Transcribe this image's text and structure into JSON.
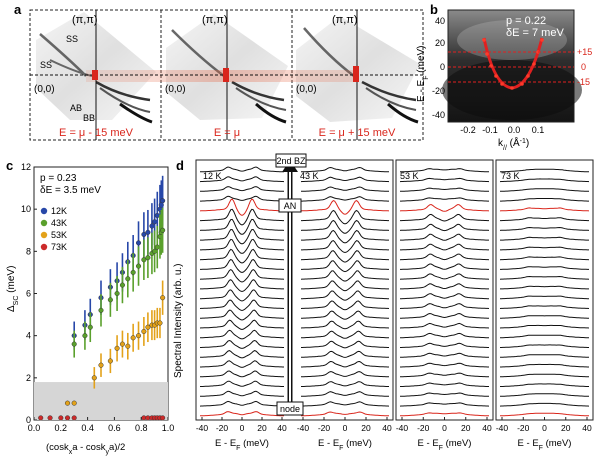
{
  "panel_a": {
    "letter": "a",
    "corner_label": "(π,π)",
    "origin_label": "(0,0)",
    "ss_label": "SS",
    "ab_label": "AB",
    "bb_label": "BB",
    "energy_labels": [
      "E = μ - 15 meV",
      "E = μ",
      "E = μ + 15 meV"
    ]
  },
  "panel_b": {
    "letter": "b",
    "doping": "p = 0.22",
    "delta_e": "δE = 7 meV",
    "ylabel": "E - E",
    "ylabel_sub": "F",
    "ylabel_unit": " (meV)",
    "xlabel": "k",
    "xlabel_sub": "//",
    "xlabel_unit": " (Å",
    "xlabel_sup": "-1",
    "xlabel_end": ")",
    "yticks": [
      "40",
      "20",
      "0",
      "-20",
      "-40"
    ],
    "xticks": [
      "-0.2",
      "-0.1",
      "0.0",
      "0.1"
    ],
    "marker_labels": [
      "+15",
      "0",
      "-15"
    ]
  },
  "panel_c": {
    "letter": "c",
    "doping": "p = 0.23",
    "delta_e": "δE = 3.5 meV",
    "ylabel": "Δ",
    "ylabel_sub": "SC",
    "ylabel_unit": " (meV)",
    "xlabel": "(cosk",
    "xlabel_sub1": "x",
    "xlabel_mid": "a - cosk",
    "xlabel_sub2": "y",
    "xlabel_end": "a)/2",
    "yticks": [
      "0",
      "2",
      "4",
      "6",
      "8",
      "10",
      "12"
    ],
    "xticks": [
      "0.0",
      "0.2",
      "0.4",
      "0.6",
      "0.8",
      "1.0"
    ],
    "legend": [
      {
        "label": "12K",
        "color": "#2747a8"
      },
      {
        "label": "43K",
        "color": "#5aa02c"
      },
      {
        "label": "53K",
        "color": "#e3a21a"
      },
      {
        "label": "73K",
        "color": "#cc2a2a"
      }
    ]
  },
  "chart_data": {
    "type": "scatter",
    "xlim": [
      0.0,
      1.0
    ],
    "ylim": [
      0,
      12
    ],
    "shaded_band_max": 1.8,
    "series": [
      {
        "name": "12K",
        "color": "#2747a8",
        "x": [
          0.3,
          0.38,
          0.42,
          0.5,
          0.57,
          0.62,
          0.66,
          0.7,
          0.74,
          0.78,
          0.82,
          0.85,
          0.88,
          0.9,
          0.92,
          0.94,
          0.95,
          0.96
        ],
        "y": [
          4.0,
          4.5,
          5.0,
          5.8,
          6.3,
          6.6,
          7.0,
          7.5,
          7.8,
          8.4,
          8.8,
          8.9,
          9.2,
          9.4,
          9.7,
          10.0,
          10.2,
          10.4
        ]
      },
      {
        "name": "43K",
        "color": "#5aa02c",
        "x": [
          0.3,
          0.38,
          0.42,
          0.5,
          0.57,
          0.62,
          0.66,
          0.7,
          0.74,
          0.78,
          0.82,
          0.85,
          0.88,
          0.9,
          0.92,
          0.94,
          0.95,
          0.96
        ],
        "y": [
          3.6,
          4.0,
          4.4,
          5.2,
          5.7,
          6.0,
          6.4,
          6.7,
          7.0,
          7.3,
          7.6,
          7.7,
          7.9,
          8.0,
          8.2,
          8.7,
          8.9,
          9.0
        ]
      },
      {
        "name": "53K",
        "color": "#e3a21a",
        "x": [
          0.25,
          0.3,
          0.45,
          0.5,
          0.57,
          0.62,
          0.66,
          0.7,
          0.74,
          0.78,
          0.82,
          0.85,
          0.88,
          0.9,
          0.92,
          0.94,
          0.96
        ],
        "y": [
          0.8,
          0.8,
          2.0,
          2.6,
          2.8,
          3.4,
          3.6,
          3.5,
          3.9,
          4.0,
          4.2,
          4.4,
          4.5,
          4.5,
          4.6,
          4.6,
          5.8
        ]
      },
      {
        "name": "73K",
        "color": "#cc2a2a",
        "x": [
          0.05,
          0.12,
          0.2,
          0.25,
          0.3,
          0.82,
          0.85,
          0.88,
          0.9,
          0.92,
          0.94,
          0.96
        ],
        "y": [
          0.1,
          0.1,
          0.1,
          0.1,
          0.1,
          0.1,
          0.1,
          0.1,
          0.1,
          0.1,
          0.1,
          0.1
        ]
      }
    ]
  },
  "panel_d": {
    "letter": "d",
    "ylabel": "Spectral Intensity (arb. u.)",
    "xlabel": "E - E",
    "xlabel_sub": "F",
    "xlabel_unit": " (meV)",
    "xticks": [
      "-40",
      "-20",
      "0",
      "20",
      "40"
    ],
    "temperatures": [
      "12 K",
      "43 K",
      "53 K",
      "73 K"
    ],
    "arrow_top": "2nd BZ",
    "arrow_mid": "AN",
    "arrow_bottom": "node"
  }
}
